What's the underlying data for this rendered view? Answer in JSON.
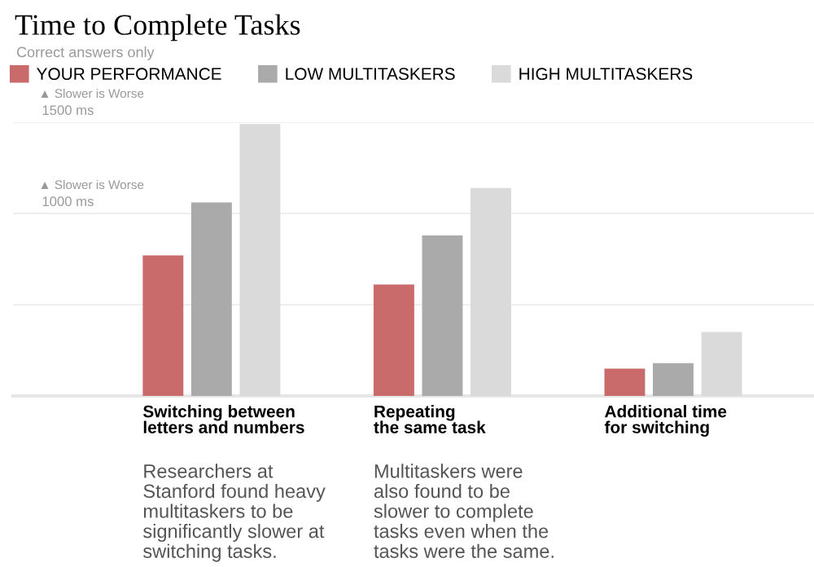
{
  "chart_data": {
    "type": "bar",
    "title": "Time to Complete Tasks",
    "subtitle": "Correct answers only",
    "categories": [
      "Switching between\nletters and numbers",
      "Repeating\nthe same task",
      "Additional time\nfor switching"
    ],
    "series": [
      {
        "name": "YOUR PERFORMANCE",
        "color": "#c96b6a",
        "values": [
          770,
          610,
          150
        ]
      },
      {
        "name": "LOW MULTITASKERS",
        "color": "#aaaaaa",
        "values": [
          1060,
          880,
          180
        ]
      },
      {
        "name": "HIGH MULTITASKERS",
        "color": "#dadada",
        "values": [
          1490,
          1140,
          350
        ]
      }
    ],
    "ylim": [
      0,
      1500
    ],
    "yticks": [
      {
        "value": 0,
        "label": null
      },
      {
        "value": 500,
        "label": null
      },
      {
        "value": 1000,
        "label": "1000 ms"
      },
      {
        "value": 1500,
        "label": "1500 ms"
      }
    ],
    "grid": "y",
    "legend": "top left",
    "annotations": [
      "▲ Slower is Worse",
      "▲ Slower is Worse",
      "Researchers at\nStanford found heavy\nmultitaskers to be\nsignificantly slower at\nswitching tasks.",
      "Multitaskers were\nalso found to be\nslower to complete\ntasks even when the\ntasks were the same."
    ]
  }
}
